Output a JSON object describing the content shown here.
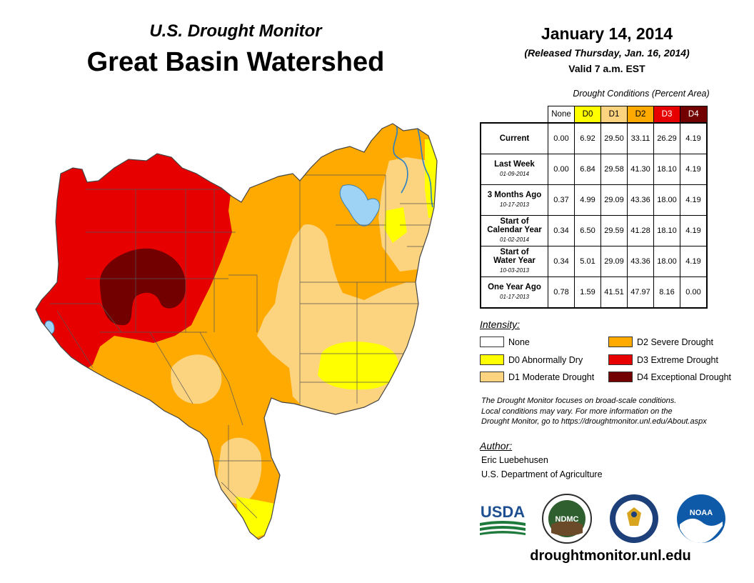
{
  "header": {
    "subtitle": "U.S. Drought Monitor",
    "title": "Great Basin Watershed",
    "date": "January 14, 2014",
    "released": "(Released Thursday, Jan. 16, 2014)",
    "valid": "Valid 7 a.m. EST"
  },
  "table": {
    "caption": "Drought Conditions (Percent Area)",
    "columns": [
      "None",
      "D0",
      "D1",
      "D2",
      "D3",
      "D4"
    ],
    "column_colors": [
      "#ffffff",
      "#ffff00",
      "#fcd37f",
      "#ffaa00",
      "#e60000",
      "#730000"
    ],
    "rows": [
      {
        "label": "Current",
        "label2": "",
        "date": "",
        "values": [
          "0.00",
          "6.92",
          "29.50",
          "33.11",
          "26.29",
          "4.19"
        ]
      },
      {
        "label": "Last Week",
        "label2": "",
        "date": "01-09-2014",
        "values": [
          "0.00",
          "6.84",
          "29.58",
          "41.30",
          "18.10",
          "4.19"
        ]
      },
      {
        "label": "3 Months Ago",
        "label2": "",
        "date": "10-17-2013",
        "values": [
          "0.37",
          "4.99",
          "29.09",
          "43.36",
          "18.00",
          "4.19"
        ]
      },
      {
        "label": "Start of",
        "label2": "Calendar Year",
        "date": "01-02-2014",
        "values": [
          "0.34",
          "6.50",
          "29.59",
          "41.28",
          "18.10",
          "4.19"
        ]
      },
      {
        "label": "Start of",
        "label2": "Water Year",
        "date": "10-03-2013",
        "values": [
          "0.34",
          "5.01",
          "29.09",
          "43.36",
          "18.00",
          "4.19"
        ]
      },
      {
        "label": "One Year Ago",
        "label2": "",
        "date": "01-17-2013",
        "values": [
          "0.78",
          "1.59",
          "41.51",
          "47.97",
          "8.16",
          "0.00"
        ]
      }
    ]
  },
  "legend": {
    "title": "Intensity:",
    "items": [
      {
        "label": "None",
        "color": "#ffffff"
      },
      {
        "label": "D0 Abnormally Dry",
        "color": "#ffff00"
      },
      {
        "label": "D1 Moderate Drought",
        "color": "#fcd37f"
      },
      {
        "label": "D2 Severe Drought",
        "color": "#ffaa00"
      },
      {
        "label": "D3 Extreme Drought",
        "color": "#e60000"
      },
      {
        "label": "D4 Exceptional Drought",
        "color": "#730000"
      }
    ]
  },
  "disclaimer": {
    "line1": "The Drought Monitor focuses on broad-scale conditions.",
    "line2": "Local conditions may vary. For more information on the",
    "line3": "Drought Monitor, go to https://droughtmonitor.unl.edu/About.aspx"
  },
  "author": {
    "title": "Author:",
    "name": "Eric Luebehusen",
    "org": "U.S. Department of Agriculture"
  },
  "logos": {
    "usda": "USDA",
    "ndmc": "NDMC",
    "noaa": "NOAA"
  },
  "website": "droughtmonitor.unl.edu",
  "map_colors": {
    "water": "#9fd3f5",
    "boundary": "#555555"
  }
}
